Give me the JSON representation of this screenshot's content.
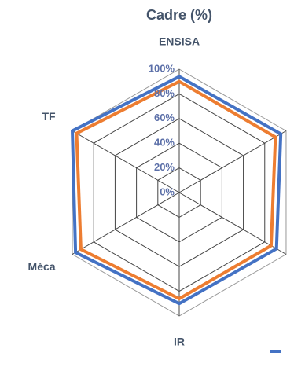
{
  "chart_data": {
    "type": "radar",
    "title": "Cadre (%)",
    "categories": [
      "ENSISA",
      null,
      null,
      "IR",
      "Méca",
      "TF"
    ],
    "series": [
      {
        "color": "#4472c4",
        "values": [
          94,
          95,
          91,
          90,
          97,
          100
        ]
      },
      {
        "color": "#ed7d31",
        "values": [
          90,
          90,
          86,
          86,
          92,
          96
        ]
      }
    ],
    "ylim": [
      0,
      100
    ],
    "yticks": [
      {
        "value": 0,
        "label": "0%"
      },
      {
        "value": 20,
        "label": "20%"
      },
      {
        "value": 40,
        "label": "40%"
      },
      {
        "value": 60,
        "label": "60%"
      },
      {
        "value": 80,
        "label": "80%"
      },
      {
        "value": 100,
        "label": "100%"
      }
    ],
    "grid": true
  }
}
